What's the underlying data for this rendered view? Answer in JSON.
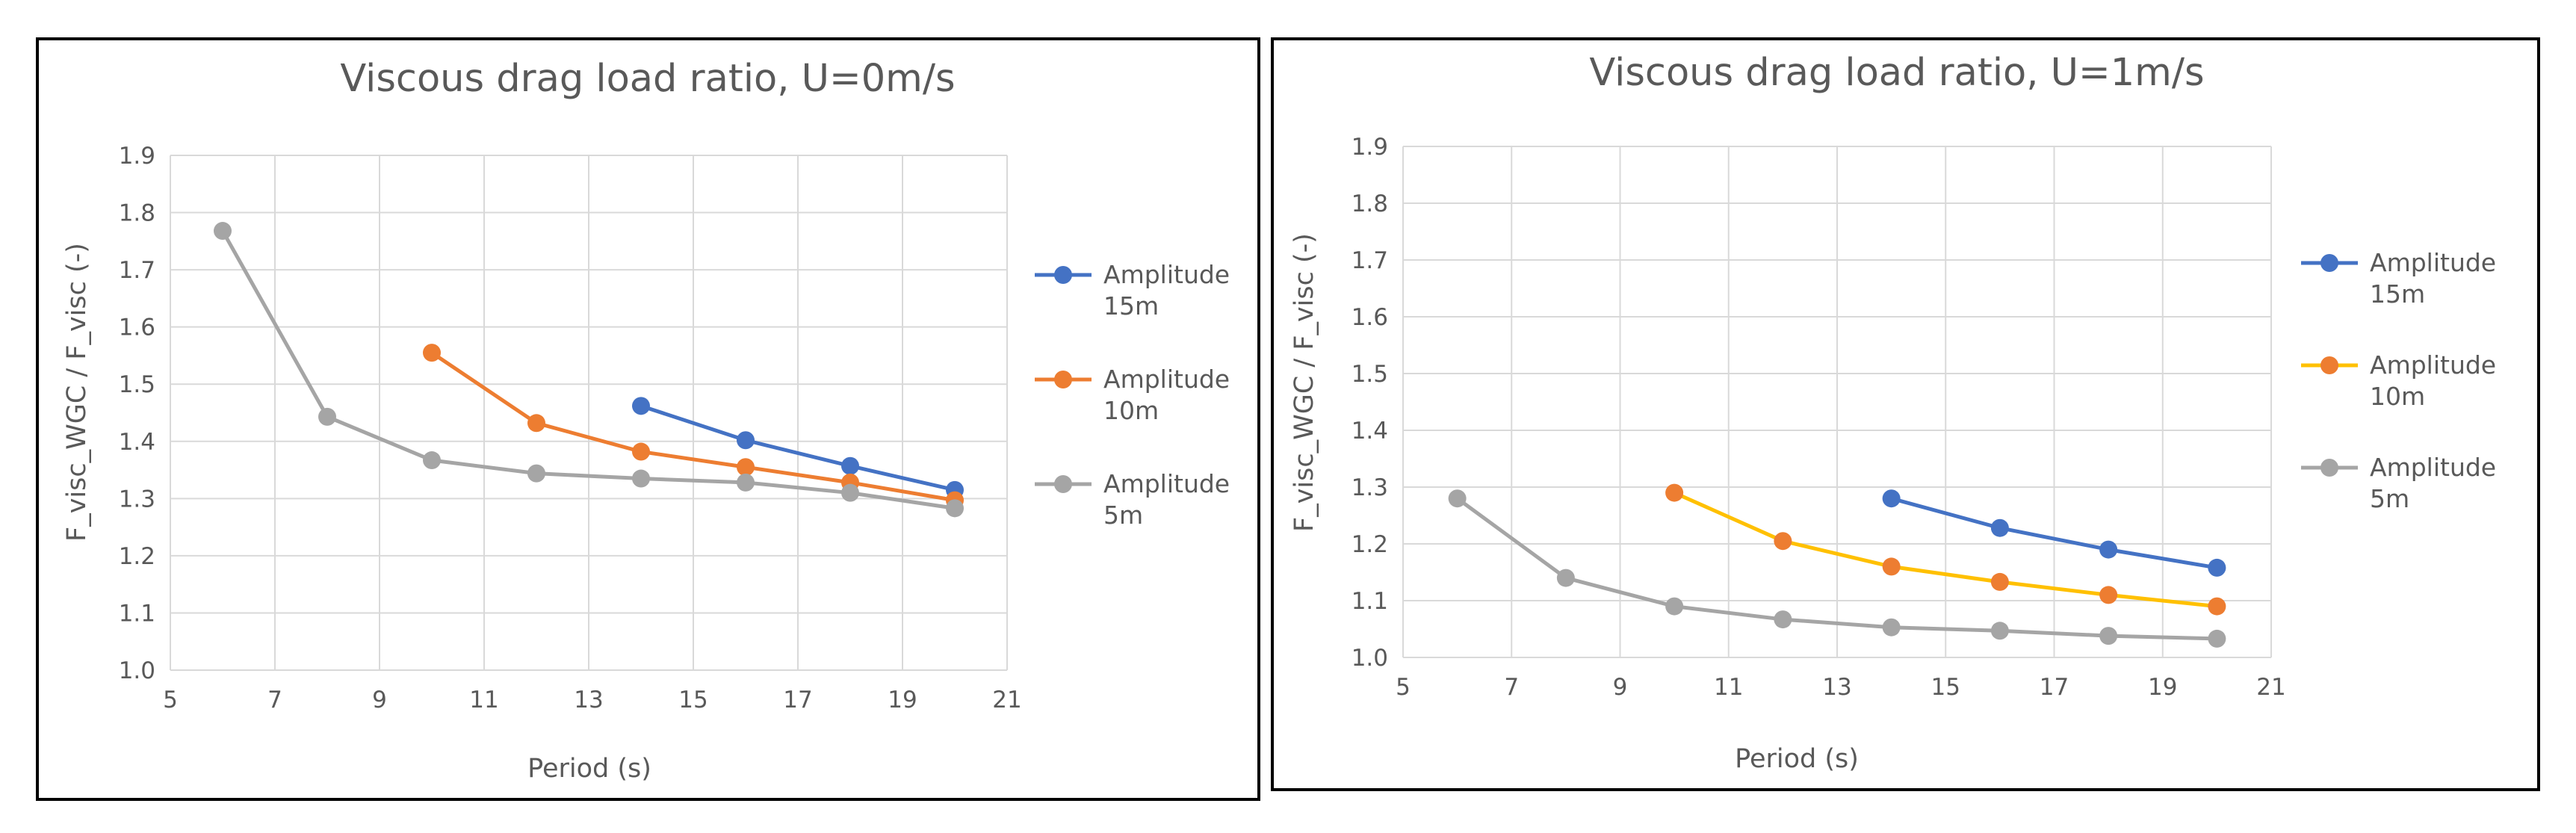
{
  "chart_data": [
    {
      "type": "line",
      "title": "Viscous drag load ratio, U=0m/s",
      "xlabel": "Period (s)",
      "ylabel": "F_visc_WGC / F_visc (-)",
      "xlim": [
        5,
        21
      ],
      "ylim": [
        1.0,
        1.9
      ],
      "xticks": [
        "5",
        "7",
        "9",
        "11",
        "13",
        "15",
        "17",
        "19",
        "21"
      ],
      "yticks": [
        "1.0",
        "1.1",
        "1.2",
        "1.3",
        "1.4",
        "1.5",
        "1.6",
        "1.7",
        "1.8",
        "1.9"
      ],
      "grid": true,
      "legend_position": "right",
      "series": [
        {
          "name": "Amplitude 15m",
          "legend_lines": [
            "Amplitude",
            "15m"
          ],
          "color": "#4472C4",
          "x": [
            14,
            16,
            18,
            20
          ],
          "y": [
            1.462,
            1.402,
            1.357,
            1.315
          ]
        },
        {
          "name": "Amplitude 10m",
          "legend_lines": [
            "Amplitude",
            "10m"
          ],
          "color": "#ED7D31",
          "x": [
            10,
            12,
            14,
            16,
            18,
            20
          ],
          "y": [
            1.555,
            1.432,
            1.382,
            1.355,
            1.328,
            1.297
          ]
        },
        {
          "name": "Amplitude 5m",
          "legend_lines": [
            "Amplitude",
            "5m"
          ],
          "color": "#A5A5A5",
          "x": [
            6,
            8,
            10,
            12,
            14,
            16,
            18,
            20
          ],
          "y": [
            1.768,
            1.443,
            1.367,
            1.344,
            1.335,
            1.328,
            1.31,
            1.283
          ]
        }
      ]
    },
    {
      "type": "line",
      "title": "Viscous drag load ratio, U=1m/s",
      "xlabel": "Period (s)",
      "ylabel": "F_visc_WGC / F_visc (-)",
      "xlim": [
        5,
        21
      ],
      "ylim": [
        1.0,
        1.9
      ],
      "xticks": [
        "5",
        "7",
        "9",
        "11",
        "13",
        "15",
        "17",
        "19",
        "21"
      ],
      "yticks": [
        "1.0",
        "1.1",
        "1.2",
        "1.3",
        "1.4",
        "1.5",
        "1.6",
        "1.7",
        "1.8",
        "1.9"
      ],
      "grid": true,
      "legend_position": "right",
      "series": [
        {
          "name": "Amplitude 15m",
          "legend_lines": [
            "Amplitude",
            "15m"
          ],
          "color": "#4472C4",
          "x": [
            14,
            16,
            18,
            20
          ],
          "y": [
            1.28,
            1.228,
            1.19,
            1.158
          ]
        },
        {
          "name": "Amplitude 10m",
          "legend_lines": [
            "Amplitude",
            "10m"
          ],
          "color": "#FFC000",
          "marker_color": "#ED7D31",
          "x": [
            10,
            12,
            14,
            16,
            18,
            20
          ],
          "y": [
            1.29,
            1.205,
            1.16,
            1.133,
            1.11,
            1.09
          ]
        },
        {
          "name": "Amplitude 5m",
          "legend_lines": [
            "Amplitude",
            "5m"
          ],
          "color": "#A5A5A5",
          "x": [
            6,
            8,
            10,
            12,
            14,
            16,
            18,
            20
          ],
          "y": [
            1.28,
            1.14,
            1.09,
            1.067,
            1.053,
            1.047,
            1.038,
            1.033
          ]
        }
      ]
    }
  ]
}
